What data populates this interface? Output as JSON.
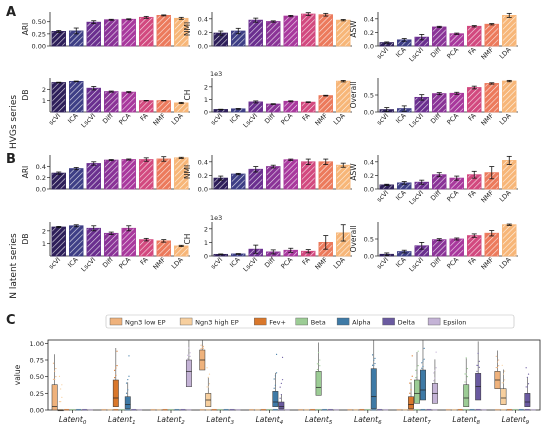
{
  "figure": {
    "panel_labels": [
      "A",
      "B",
      "C"
    ],
    "row_labels": [
      "HVGs series",
      "N latent series"
    ]
  },
  "colors": {
    "scVI": "#2e1f5a",
    "ICA": "#3e3f86",
    "LscVI": "#6a2f8f",
    "Diff": "#8a3397",
    "PCA": "#a8389d",
    "FA": "#d2497f",
    "NMF": "#ec7a5c",
    "LDA": "#f7b678"
  },
  "chart_data": [
    {
      "panel": "A",
      "type": "bar",
      "ylabel": "ARI",
      "categories": [
        "scVI",
        "ICA",
        "LscVI",
        "Diff",
        "PCA",
        "FA",
        "NMF",
        "LDA"
      ],
      "values": [
        0.3,
        0.31,
        0.49,
        0.54,
        0.55,
        0.59,
        0.63,
        0.57
      ],
      "errors": [
        0.02,
        0.06,
        0.03,
        0.01,
        0.01,
        0.02,
        0.01,
        0.02
      ],
      "ylim": [
        0,
        0.7
      ],
      "yticks": [
        "0.00",
        "0.25",
        "0.50"
      ],
      "ytick_values": [
        0,
        0.25,
        0.5
      ],
      "show_xticks": false
    },
    {
      "panel": "A",
      "type": "bar",
      "ylabel": "NMI",
      "categories": [
        "scVI",
        "ICA",
        "LscVI",
        "Diff",
        "PCA",
        "FA",
        "NMF",
        "LDA"
      ],
      "values": [
        0.19,
        0.22,
        0.38,
        0.36,
        0.44,
        0.47,
        0.46,
        0.38
      ],
      "errors": [
        0.03,
        0.04,
        0.03,
        0.01,
        0.01,
        0.02,
        0.02,
        0.01
      ],
      "ylim": [
        0,
        0.5
      ],
      "yticks": [
        "0.0",
        "0.2",
        "0.4"
      ],
      "ytick_values": [
        0,
        0.2,
        0.4
      ],
      "show_xticks": false
    },
    {
      "panel": "A",
      "type": "bar",
      "ylabel": "ASW",
      "categories": [
        "scVI",
        "ICA",
        "LscVI",
        "Diff",
        "PCA",
        "FA",
        "NMF",
        "LDA"
      ],
      "values": [
        0.05,
        0.09,
        0.13,
        0.28,
        0.18,
        0.29,
        0.32,
        0.45
      ],
      "errors": [
        0.01,
        0.02,
        0.04,
        0.01,
        0.01,
        0.01,
        0.01,
        0.03
      ],
      "ylim": [
        0,
        0.5
      ],
      "yticks": [
        "0.0",
        "0.2",
        "0.4"
      ],
      "ytick_values": [
        0,
        0.2,
        0.4
      ],
      "show_xticks": true
    },
    {
      "panel": "A",
      "type": "bar",
      "ylabel": "DB",
      "categories": [
        "scVI",
        "ICA",
        "LscVI",
        "Diff",
        "PCA",
        "FA",
        "NMF",
        "LDA"
      ],
      "values": [
        2.6,
        2.7,
        2.1,
        1.8,
        1.75,
        1.0,
        1.0,
        0.8
      ],
      "errors": [
        0.03,
        0.03,
        0.15,
        0.05,
        0.05,
        0.02,
        0.02,
        0.05
      ],
      "ylim": [
        0,
        3
      ],
      "yticks": [
        "1",
        "2"
      ],
      "ytick_values": [
        1,
        2
      ],
      "show_xticks": true
    },
    {
      "panel": "A",
      "type": "bar",
      "ylabel": "CH",
      "scale_label": "1e3",
      "categories": [
        "scVI",
        "ICA",
        "LscVI",
        "Diff",
        "PCA",
        "FA",
        "NMF",
        "LDA"
      ],
      "values": [
        0.2,
        0.25,
        0.8,
        0.63,
        0.85,
        0.78,
        1.3,
        2.45
      ],
      "errors": [
        0.02,
        0.03,
        0.08,
        0.03,
        0.04,
        0.03,
        0.03,
        0.06
      ],
      "ylim": [
        0,
        2.7
      ],
      "yticks": [
        "0",
        "1",
        "2"
      ],
      "ytick_values": [
        0,
        1,
        2
      ],
      "show_xticks": true
    },
    {
      "panel": "A",
      "type": "bar",
      "ylabel": "Overall",
      "categories": [
        "scVI",
        "ICA",
        "LscVI",
        "Diff",
        "PCA",
        "FA",
        "NMF",
        "LDA"
      ],
      "values": [
        0.07,
        0.1,
        0.43,
        0.54,
        0.55,
        0.72,
        0.84,
        0.91
      ],
      "errors": [
        0.06,
        0.08,
        0.08,
        0.03,
        0.03,
        0.04,
        0.02,
        0.02
      ],
      "ylim": [
        0,
        1
      ],
      "yticks": [
        "0.0",
        "0.5"
      ],
      "ytick_values": [
        0,
        0.5
      ],
      "show_xticks": true
    },
    {
      "panel": "B",
      "type": "bar",
      "ylabel": "ARI",
      "categories": [
        "scVI",
        "ICA",
        "LscVI",
        "Diff",
        "PCA",
        "FA",
        "NMF",
        "LDA"
      ],
      "values": [
        0.28,
        0.36,
        0.45,
        0.51,
        0.52,
        0.52,
        0.53,
        0.55
      ],
      "errors": [
        0.02,
        0.02,
        0.03,
        0.01,
        0.01,
        0.03,
        0.04,
        0.01
      ],
      "ylim": [
        0,
        0.6
      ],
      "yticks": [
        "0.0",
        "0.2",
        "0.4"
      ],
      "ytick_values": [
        0,
        0.2,
        0.4
      ],
      "show_xticks": false
    },
    {
      "panel": "B",
      "type": "bar",
      "ylabel": "NMI",
      "categories": [
        "scVI",
        "ICA",
        "LscVI",
        "Diff",
        "PCA",
        "FA",
        "NMF",
        "LDA"
      ],
      "values": [
        0.16,
        0.22,
        0.29,
        0.33,
        0.43,
        0.4,
        0.4,
        0.35
      ],
      "errors": [
        0.03,
        0.01,
        0.04,
        0.02,
        0.01,
        0.04,
        0.04,
        0.03
      ],
      "ylim": [
        0,
        0.5
      ],
      "yticks": [
        "0.0",
        "0.2",
        "0.4"
      ],
      "ytick_values": [
        0,
        0.2,
        0.4
      ],
      "show_xticks": false
    },
    {
      "panel": "B",
      "type": "bar",
      "ylabel": "ASW",
      "categories": [
        "scVI",
        "ICA",
        "LscVI",
        "Diff",
        "PCA",
        "FA",
        "NMF",
        "LDA"
      ],
      "values": [
        0.06,
        0.09,
        0.1,
        0.21,
        0.16,
        0.21,
        0.24,
        0.42
      ],
      "errors": [
        0.01,
        0.02,
        0.03,
        0.03,
        0.03,
        0.05,
        0.09,
        0.06
      ],
      "ylim": [
        0,
        0.5
      ],
      "yticks": [
        "0.0",
        "0.2",
        "0.4"
      ],
      "ytick_values": [
        0,
        0.2,
        0.4
      ],
      "show_xticks": true
    },
    {
      "panel": "B",
      "type": "bar",
      "ylabel": "DB",
      "categories": [
        "scVI",
        "ICA",
        "LscVI",
        "Diff",
        "PCA",
        "FA",
        "NMF",
        "LDA"
      ],
      "values": [
        2.3,
        2.4,
        2.2,
        1.8,
        2.2,
        1.3,
        1.2,
        0.8
      ],
      "errors": [
        0.05,
        0.08,
        0.2,
        0.1,
        0.2,
        0.1,
        0.1,
        0.05
      ],
      "ylim": [
        0,
        2.7
      ],
      "yticks": [
        "1",
        "2"
      ],
      "ytick_values": [
        1,
        2
      ],
      "show_xticks": true
    },
    {
      "panel": "B",
      "type": "bar",
      "ylabel": "CH",
      "scale_label": "1e3",
      "categories": [
        "scVI",
        "ICA",
        "LscVI",
        "Diff",
        "PCA",
        "FA",
        "NMF",
        "LDA"
      ],
      "values": [
        0.12,
        0.15,
        0.5,
        0.3,
        0.42,
        0.35,
        1.0,
        1.7
      ],
      "errors": [
        0.03,
        0.03,
        0.3,
        0.15,
        0.15,
        0.12,
        0.5,
        0.6
      ],
      "ylim": [
        0,
        2.5
      ],
      "yticks": [
        "0",
        "1",
        "2"
      ],
      "ytick_values": [
        0,
        1,
        2
      ],
      "show_xticks": true
    },
    {
      "panel": "B",
      "type": "bar",
      "ylabel": "Overall",
      "categories": [
        "scVI",
        "ICA",
        "LscVI",
        "Diff",
        "PCA",
        "FA",
        "NMF",
        "LDA"
      ],
      "values": [
        0.05,
        0.13,
        0.3,
        0.48,
        0.5,
        0.6,
        0.67,
        0.92
      ],
      "errors": [
        0.04,
        0.04,
        0.1,
        0.03,
        0.03,
        0.05,
        0.08,
        0.02
      ],
      "ylim": [
        0,
        1
      ],
      "yticks": [
        "0.0",
        "0.5"
      ],
      "ytick_values": [
        0,
        0.5
      ],
      "show_xticks": true
    },
    {
      "panel": "C",
      "type": "box",
      "ylabel": "value",
      "ylim": [
        0,
        1.05
      ],
      "yticks": [
        "0.00",
        "0.25",
        "0.50",
        "0.75",
        "1.00"
      ],
      "ytick_values": [
        0,
        0.25,
        0.5,
        0.75,
        1.0
      ],
      "legend": [
        "Ngn3 low EP",
        "Ngn3 high EP",
        "Fev+",
        "Beta",
        "Alpha",
        "Delta",
        "Epsilon"
      ],
      "legend_colors": [
        "#efb27c",
        "#f7cf9e",
        "#d9772b",
        "#9ccc95",
        "#3e7aa6",
        "#6a5aa0",
        "#c4b3d6"
      ],
      "categories": [
        "Latent",
        "Latent",
        "Latent",
        "Latent",
        "Latent",
        "Latent",
        "Latent",
        "Latent",
        "Latent",
        "Latent"
      ],
      "category_subscripts": [
        "0",
        "1",
        "2",
        "3",
        "4",
        "5",
        "6",
        "7",
        "8",
        "9"
      ],
      "boxes": [
        {
          "latent": 0,
          "group": 0,
          "q1": 0.0,
          "median": 0.05,
          "q3": 0.38
        },
        {
          "latent": 0,
          "group": 1,
          "q1": 0.0,
          "median": 0.0,
          "q3": 0.0
        },
        {
          "latent": 1,
          "group": 2,
          "q1": 0.05,
          "median": 0.18,
          "q3": 0.45
        },
        {
          "latent": 1,
          "group": 4,
          "q1": 0.02,
          "median": 0.08,
          "q3": 0.2
        },
        {
          "latent": 2,
          "group": 6,
          "q1": 0.35,
          "median": 0.58,
          "q3": 0.75
        },
        {
          "latent": 3,
          "group": 0,
          "q1": 0.6,
          "median": 0.75,
          "q3": 0.9
        },
        {
          "latent": 3,
          "group": 1,
          "q1": 0.05,
          "median": 0.15,
          "q3": 0.25
        },
        {
          "latent": 4,
          "group": 4,
          "q1": 0.05,
          "median": 0.12,
          "q3": 0.28
        },
        {
          "latent": 4,
          "group": 5,
          "q1": 0.02,
          "median": 0.05,
          "q3": 0.12
        },
        {
          "latent": 5,
          "group": 3,
          "q1": 0.22,
          "median": 0.34,
          "q3": 0.58
        },
        {
          "latent": 6,
          "group": 4,
          "q1": 0.02,
          "median": 0.2,
          "q3": 0.62
        },
        {
          "latent": 7,
          "group": 2,
          "q1": 0.02,
          "median": 0.08,
          "q3": 0.2
        },
        {
          "latent": 7,
          "group": 3,
          "q1": 0.1,
          "median": 0.25,
          "q3": 0.45
        },
        {
          "latent": 7,
          "group": 4,
          "q1": 0.15,
          "median": 0.3,
          "q3": 0.6
        },
        {
          "latent": 7,
          "group": 6,
          "q1": 0.1,
          "median": 0.25,
          "q3": 0.4
        },
        {
          "latent": 8,
          "group": 3,
          "q1": 0.05,
          "median": 0.18,
          "q3": 0.38
        },
        {
          "latent": 8,
          "group": 5,
          "q1": 0.15,
          "median": 0.35,
          "q3": 0.55
        },
        {
          "latent": 9,
          "group": 0,
          "q1": 0.32,
          "median": 0.45,
          "q3": 0.58
        },
        {
          "latent": 9,
          "group": 1,
          "q1": 0.08,
          "median": 0.18,
          "q3": 0.32
        },
        {
          "latent": 9,
          "group": 5,
          "q1": 0.05,
          "median": 0.12,
          "q3": 0.25
        }
      ]
    }
  ]
}
